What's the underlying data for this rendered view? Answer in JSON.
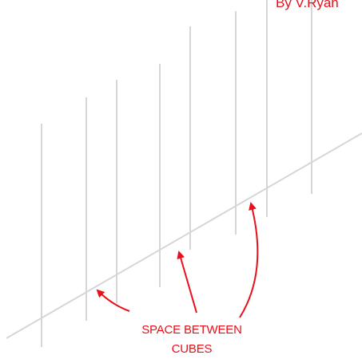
{
  "credit": "By V.Ryan",
  "annotation": {
    "line1": "SPACE BETWEEN",
    "line2": "CUBES"
  },
  "colors": {
    "background": "#ffffff",
    "lines": "#d6d6d6",
    "accent": "#e8101a"
  }
}
